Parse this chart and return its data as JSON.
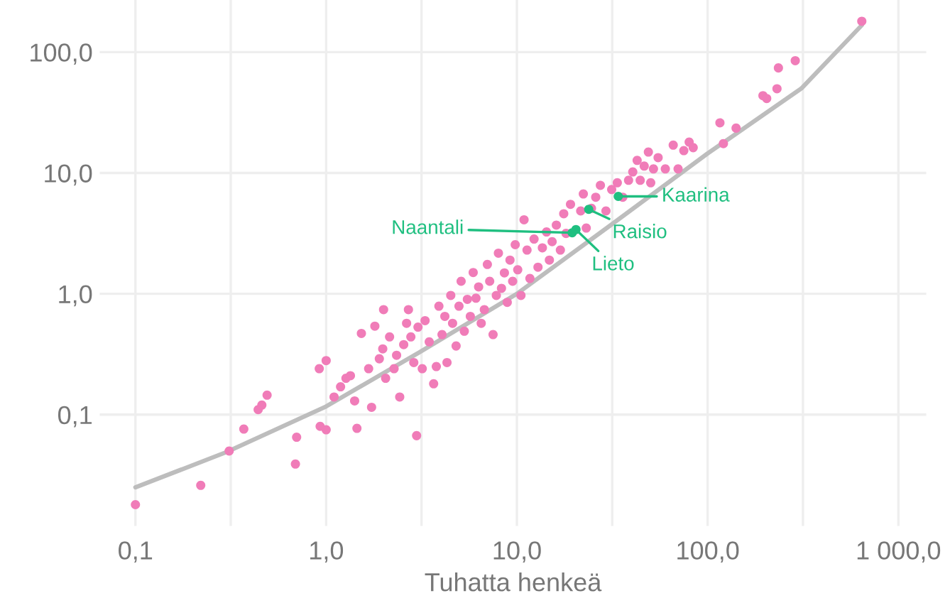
{
  "chart_data": {
    "type": "scatter",
    "xlabel": "Tuhatta henkeä",
    "log": "xy",
    "grid": true,
    "marker": "circle",
    "xlim": [
      0.065,
      1400
    ],
    "ylim": [
      0.012,
      270
    ],
    "xticks": [
      {
        "value": 0.1,
        "label": "0,1"
      },
      {
        "value": 0.316,
        "label": null
      },
      {
        "value": 1,
        "label": "1,0"
      },
      {
        "value": 3.16,
        "label": null
      },
      {
        "value": 10,
        "label": "10,0"
      },
      {
        "value": 31.6,
        "label": null
      },
      {
        "value": 100,
        "label": "100,0"
      },
      {
        "value": 316,
        "label": null
      },
      {
        "value": 1000,
        "label": "1 000,0"
      }
    ],
    "yticks": [
      {
        "value": 0.1,
        "label": "0,1"
      },
      {
        "value": 1,
        "label": "1,0"
      },
      {
        "value": 10,
        "label": "10,0"
      },
      {
        "value": 100,
        "label": "100,0"
      }
    ],
    "series": [
      {
        "color": "#f07cb8",
        "x": [
          0.1,
          0.22,
          0.31,
          0.37,
          0.44,
          0.46,
          0.49,
          0.7,
          0.69,
          0.92,
          1.0,
          0.93,
          1.0,
          1.1,
          1.19,
          1.27,
          1.34,
          1.41,
          1.45,
          1.53,
          1.67,
          1.73,
          1.8,
          1.9,
          1.98,
          2.0,
          2.05,
          2.15,
          2.27,
          2.34,
          2.43,
          2.55,
          2.64,
          2.7,
          2.78,
          2.88,
          3.03,
          3.19,
          2.98,
          3.3,
          3.47,
          3.66,
          3.78,
          3.9,
          4.05,
          4.19,
          4.3,
          4.5,
          4.6,
          4.8,
          4.97,
          5.1,
          5.3,
          5.5,
          5.7,
          5.9,
          6.1,
          6.3,
          6.5,
          6.75,
          7.0,
          7.2,
          7.5,
          7.8,
          8.0,
          8.3,
          8.6,
          8.9,
          9.2,
          9.5,
          9.8,
          10.1,
          10.5,
          10.9,
          11.3,
          11.7,
          12.3,
          12.9,
          13.6,
          14.3,
          14.8,
          15.3,
          16.1,
          16.9,
          17.6,
          18.1,
          19.1,
          21.6,
          22.3,
          23.1,
          24.6,
          25.9,
          27.4,
          29.3,
          31.4,
          33.6,
          35.9,
          38.5,
          40.5,
          42.7,
          44.3,
          46.5,
          48.9,
          50.3,
          52,
          55,
          60,
          66,
          70,
          75,
          80,
          84,
          116,
          121,
          141,
          195,
          204,
          231,
          235,
          288,
          643
        ],
        "values": [
          0.018,
          0.026,
          0.05,
          0.076,
          0.11,
          0.12,
          0.145,
          0.065,
          0.039,
          0.24,
          0.28,
          0.08,
          0.075,
          0.14,
          0.17,
          0.2,
          0.21,
          0.13,
          0.077,
          0.47,
          0.24,
          0.115,
          0.54,
          0.29,
          0.35,
          0.74,
          0.2,
          0.44,
          0.24,
          0.31,
          0.14,
          0.38,
          0.57,
          0.74,
          0.44,
          0.27,
          0.53,
          0.24,
          0.067,
          0.6,
          0.4,
          0.18,
          0.25,
          0.79,
          0.46,
          0.65,
          0.27,
          0.97,
          0.57,
          0.37,
          0.79,
          1.27,
          0.49,
          0.9,
          0.65,
          1.5,
          0.92,
          1.14,
          0.57,
          0.74,
          1.75,
          1.27,
          0.46,
          0.97,
          2.17,
          1.11,
          1.49,
          0.85,
          1.9,
          1.27,
          2.55,
          1.58,
          0.97,
          4.1,
          2.3,
          1.34,
          2.84,
          1.66,
          2.4,
          3.25,
          1.9,
          2.7,
          3.7,
          2.3,
          4.6,
          3.16,
          5.5,
          4.85,
          6.7,
          3.5,
          5.1,
          6.3,
          7.9,
          4.85,
          7.3,
          8.3,
          6.3,
          8.7,
          10.2,
          12.7,
          8.7,
          11.4,
          14.9,
          8.3,
          10.8,
          13.4,
          10.8,
          17,
          10.8,
          15.3,
          18,
          16.2,
          26,
          17.5,
          23.5,
          43.6,
          41.3,
          49.8,
          74,
          85,
          180
        ]
      },
      {
        "type": "line",
        "marker": "none",
        "color": "#bdbdbd",
        "x": [
          0.1,
          0.3,
          1,
          3.1,
          10,
          31,
          100,
          310,
          643
        ],
        "values": [
          0.025,
          0.049,
          0.117,
          0.33,
          1.0,
          3.7,
          14.5,
          50,
          167
        ]
      },
      {
        "color": "#1fbf80",
        "x": [
          34,
          23.8,
          19.5,
          20.4
        ],
        "values": [
          6.4,
          5.0,
          3.2,
          3.4
        ]
      }
    ],
    "annotations": [
      {
        "text": "Kaarina",
        "x": 34,
        "y": 6.4
      },
      {
        "text": "Raisio",
        "x": 23.8,
        "y": 5.0
      },
      {
        "text": "Naantali",
        "x": 19.5,
        "y": 3.2
      },
      {
        "text": "Lieto",
        "x": 20.4,
        "y": 3.4
      }
    ]
  }
}
